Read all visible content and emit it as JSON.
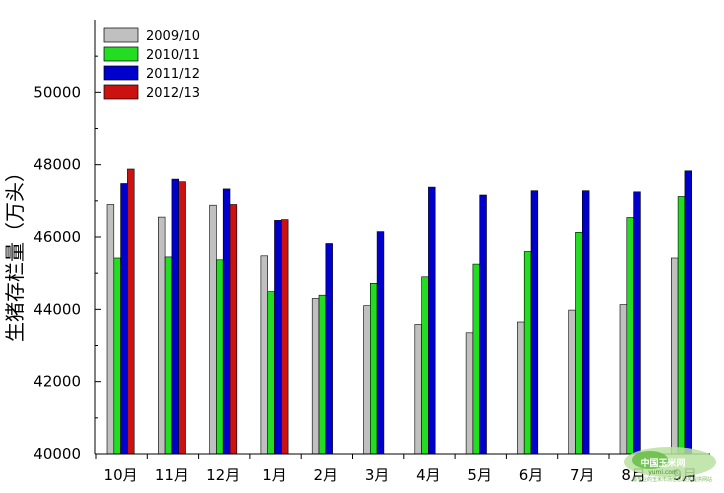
{
  "chart_data": {
    "type": "bar",
    "title": "",
    "xlabel": "",
    "ylabel": "生猪存栏量（万头）",
    "categories": [
      "10月",
      "11月",
      "12月",
      "1月",
      "2月",
      "3月",
      "4月",
      "5月",
      "6月",
      "7月",
      "8月",
      "9月"
    ],
    "ylim": [
      40000,
      52000
    ],
    "yticks": [
      40000,
      42000,
      44000,
      46000,
      48000,
      50000
    ],
    "ytick_labels": [
      "40000",
      "42000",
      "44000",
      "46000",
      "48000",
      "50000"
    ],
    "legend_position": "top-left",
    "grid": false,
    "series": [
      {
        "name": "2009/10",
        "color": "#c0c0c0",
        "values": [
          46900,
          46550,
          46880,
          45480,
          44300,
          44100,
          43580,
          43350,
          43650,
          43980,
          44130,
          45420
        ]
      },
      {
        "name": "2010/11",
        "color": "#22dd22",
        "values": [
          45420,
          45450,
          45370,
          44490,
          44390,
          44720,
          44900,
          45250,
          45600,
          46130,
          46540,
          47120
        ]
      },
      {
        "name": "2011/12",
        "color": "#0000cc",
        "values": [
          47480,
          47600,
          47330,
          46460,
          45820,
          46150,
          47380,
          47160,
          47280,
          47280,
          47250,
          47830
        ]
      },
      {
        "name": "2012/13",
        "color": "#cc1111",
        "values": [
          47880,
          47530,
          46900,
          46480,
          null,
          null,
          null,
          null,
          null,
          null,
          null,
          null
        ]
      }
    ]
  },
  "watermark": {
    "title": "中国玉米网",
    "url": "yumi.com",
    "slogan": "最专业的玉米市场信息服务提供网站"
  }
}
